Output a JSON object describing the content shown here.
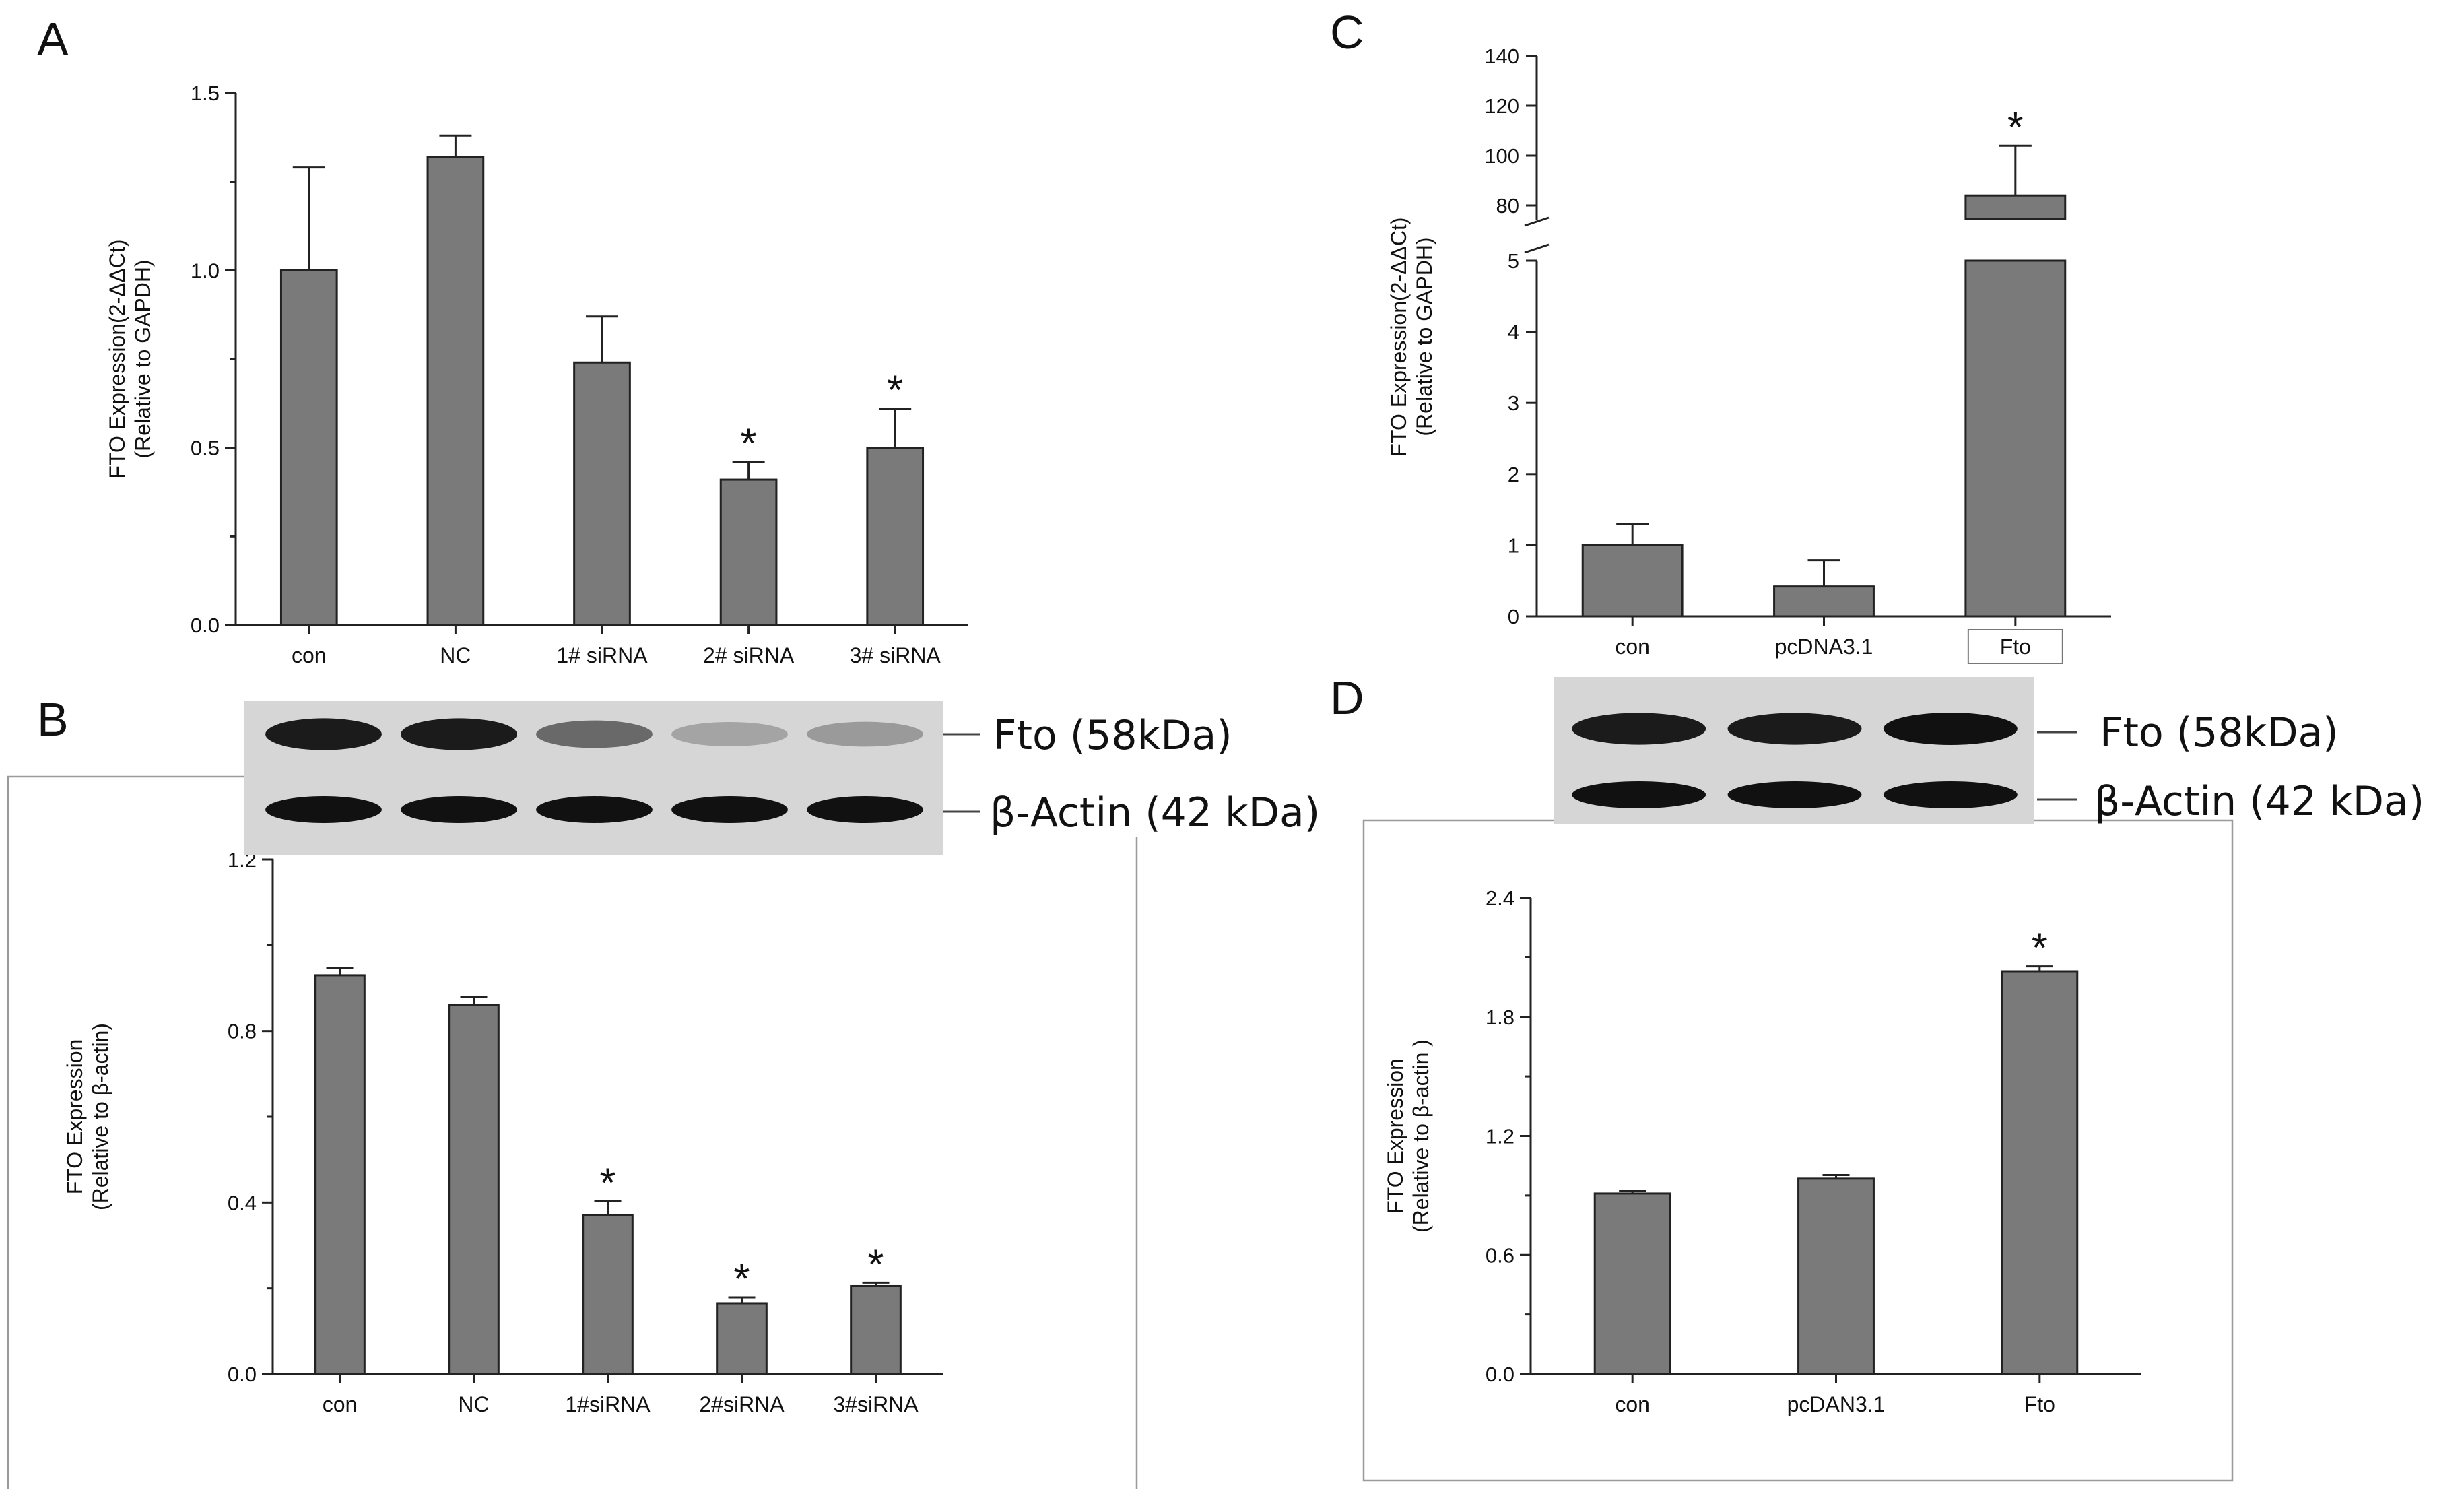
{
  "chart_data": [
    {
      "panel": "A",
      "type": "bar",
      "title": "",
      "xlabel": "",
      "ylabel": "FTO Expression(2-ΔΔCt)",
      "ylabel_line2": "(Relative to GAPDH)",
      "ylim": [
        0,
        1.5
      ],
      "yticks": [
        "0.0",
        "0.5",
        "1.0",
        "1.5"
      ],
      "categories": [
        "con",
        "NC",
        "1# siRNA",
        "2# siRNA",
        "3# siRNA"
      ],
      "values": [
        1.0,
        1.32,
        0.74,
        0.41,
        0.5
      ],
      "errors": [
        0.29,
        0.06,
        0.13,
        0.05,
        0.11
      ],
      "significance": [
        "",
        "",
        "",
        "*",
        "*"
      ]
    },
    {
      "panel": "B",
      "type": "bar",
      "title": "",
      "xlabel": "",
      "ylabel": "FTO Expression",
      "ylabel_line2": "(Relative to β-actin)",
      "ylim": [
        0,
        1.2
      ],
      "yticks": [
        "0.0",
        "0.4",
        "0.8",
        "1.2"
      ],
      "categories": [
        "con",
        "NC",
        "1#siRNA",
        "2#siRNA",
        "3#siRNA"
      ],
      "values": [
        0.93,
        0.86,
        0.37,
        0.165,
        0.205
      ],
      "errors": [
        0.018,
        0.02,
        0.033,
        0.014,
        0.008
      ],
      "significance": [
        "",
        "",
        "*",
        "*",
        "*"
      ]
    },
    {
      "panel": "C",
      "type": "bar",
      "title": "",
      "xlabel": "",
      "ylabel": "FTO Expression(2-ΔΔCt)",
      "ylabel_line2": "(Relative to GAPDH)",
      "axis_break": [
        5,
        80
      ],
      "ylim_lower": [
        0,
        5
      ],
      "ylim_upper": [
        80,
        140
      ],
      "yticks_lower": [
        "0",
        "1",
        "2",
        "3",
        "4",
        "5"
      ],
      "yticks_upper": [
        "80",
        "100",
        "120",
        "140"
      ],
      "categories": [
        "con",
        "pcDNA3.1",
        "Fto"
      ],
      "values": [
        1.0,
        0.42,
        84
      ],
      "errors": [
        0.3,
        0.37,
        20
      ],
      "significance": [
        "",
        "",
        "*"
      ]
    },
    {
      "panel": "D",
      "type": "bar",
      "title": "",
      "xlabel": "",
      "ylabel": "FTO Expression",
      "ylabel_line2": "(Relative to β-actin )",
      "ylim": [
        0,
        2.4
      ],
      "yticks": [
        "0.0",
        "0.6",
        "1.2",
        "1.8",
        "2.4"
      ],
      "categories": [
        "con",
        "pcDAN3.1",
        "Fto"
      ],
      "values": [
        0.91,
        0.985,
        2.03
      ],
      "errors": [
        0.015,
        0.018,
        0.025
      ],
      "significance": [
        "",
        "",
        "*"
      ]
    }
  ],
  "panel_letters": [
    "A",
    "B",
    "C",
    "D"
  ],
  "blots": {
    "B": {
      "lanes": 5,
      "band_intensity": {
        "fto": [
          0.95,
          0.95,
          0.55,
          0.25,
          0.3
        ],
        "actin": [
          1,
          1,
          1,
          1,
          1
        ]
      },
      "labels": [
        "Fto (58kDa)",
        "β-Actin (42 kDa)"
      ]
    },
    "D": {
      "lanes": 3,
      "band_intensity": {
        "fto": [
          0.95,
          0.95,
          1.0
        ],
        "actin": [
          1,
          1,
          1
        ]
      },
      "labels": [
        "Fto (58kDa)",
        "β-Actin (42 kDa)"
      ]
    }
  },
  "colors": {
    "bar_fill": "#7a7a7a",
    "bar_edge": "#222222",
    "band": "#111111",
    "blot_bg": "#d6d6d6"
  }
}
